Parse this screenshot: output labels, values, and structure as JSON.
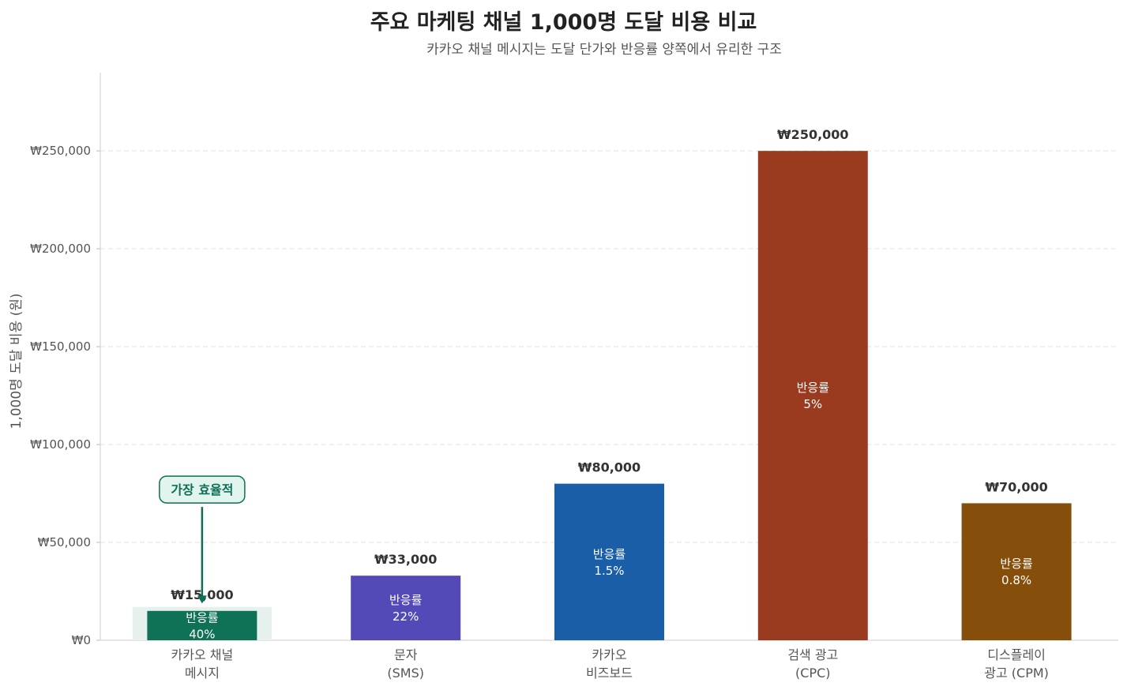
{
  "chart_data": {
    "type": "bar",
    "title": "주요 마케팅 채널 1,000명 도달 비용 비교",
    "subtitle": "카카오 채널 메시지는 도달 단가와 반응률 양쪽에서 유리한 구조",
    "ylabel": "1,000명 도달 비용 (원)",
    "xlabel": "",
    "ylim": [
      0,
      290000
    ],
    "yticks": [
      0,
      50000,
      100000,
      150000,
      200000,
      250000
    ],
    "ytick_labels": [
      "₩0",
      "₩50,000",
      "₩100,000",
      "₩150,000",
      "₩200,000",
      "₩250,000"
    ],
    "grid": "horizontal dashed",
    "categories": [
      [
        "카카오 채널",
        "메시지"
      ],
      [
        "문자",
        "(SMS)"
      ],
      [
        "카카오",
        "비즈보드"
      ],
      [
        "검색 광고",
        "(CPC)"
      ],
      [
        "디스플레이",
        "광고 (CPM)"
      ]
    ],
    "values": [
      15000,
      33000,
      80000,
      250000,
      70000
    ],
    "value_labels": [
      "₩15,000",
      "₩33,000",
      "₩80,000",
      "₩250,000",
      "₩70,000"
    ],
    "response_rate_title": "반응률",
    "response_rates": [
      "40%",
      "22%",
      "1.5%",
      "5%",
      "0.8%"
    ],
    "colors": [
      "#0f7155",
      "#534ab7",
      "#1a5ea8",
      "#9a3a1e",
      "#854f0b"
    ],
    "highlight_color": "#e6f1ed",
    "annotation": {
      "text": "가장 효율적",
      "target_index": 0,
      "target_value": 18000,
      "box_value": 77000,
      "border_color": "#0f6e56",
      "fill_color": "#e1f5ee"
    }
  }
}
